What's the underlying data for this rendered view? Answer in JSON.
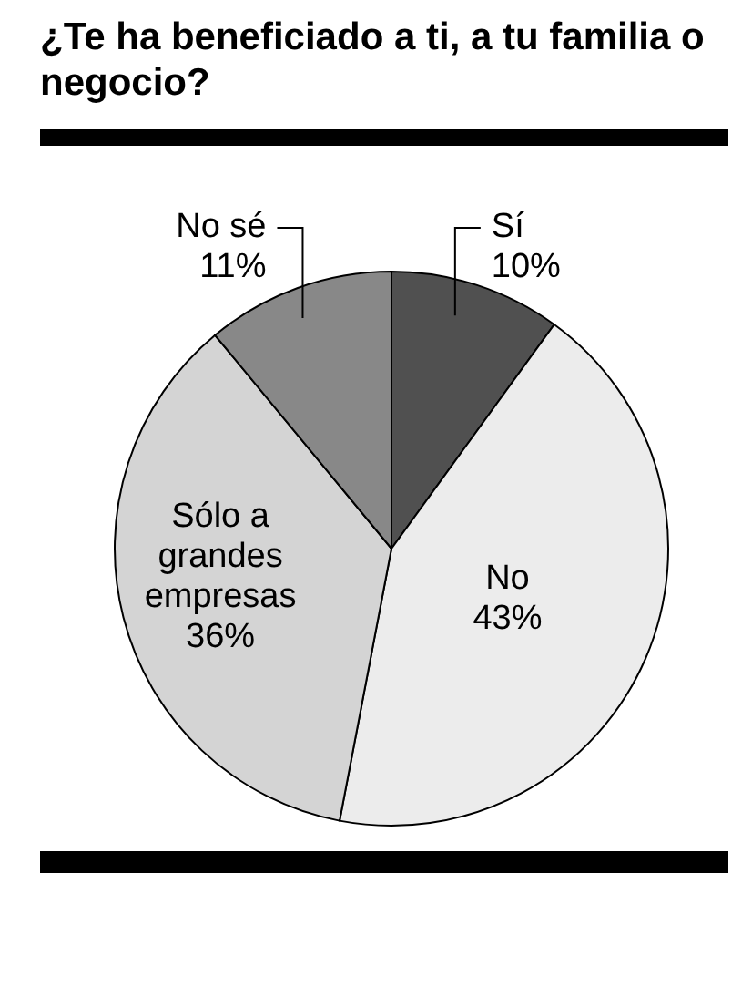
{
  "chart_data": {
    "type": "pie",
    "title": "¿Te ha beneficiado a ti, a tu familia o negocio?",
    "categories": [
      "Sí",
      "No",
      "Sólo a grandes empresas",
      "No sé"
    ],
    "values": [
      10,
      43,
      36,
      11
    ],
    "value_labels": [
      "10%",
      "43%",
      "36%",
      "11%"
    ],
    "colors": [
      "#505050",
      "#ececec",
      "#d4d4d4",
      "#888888"
    ]
  }
}
